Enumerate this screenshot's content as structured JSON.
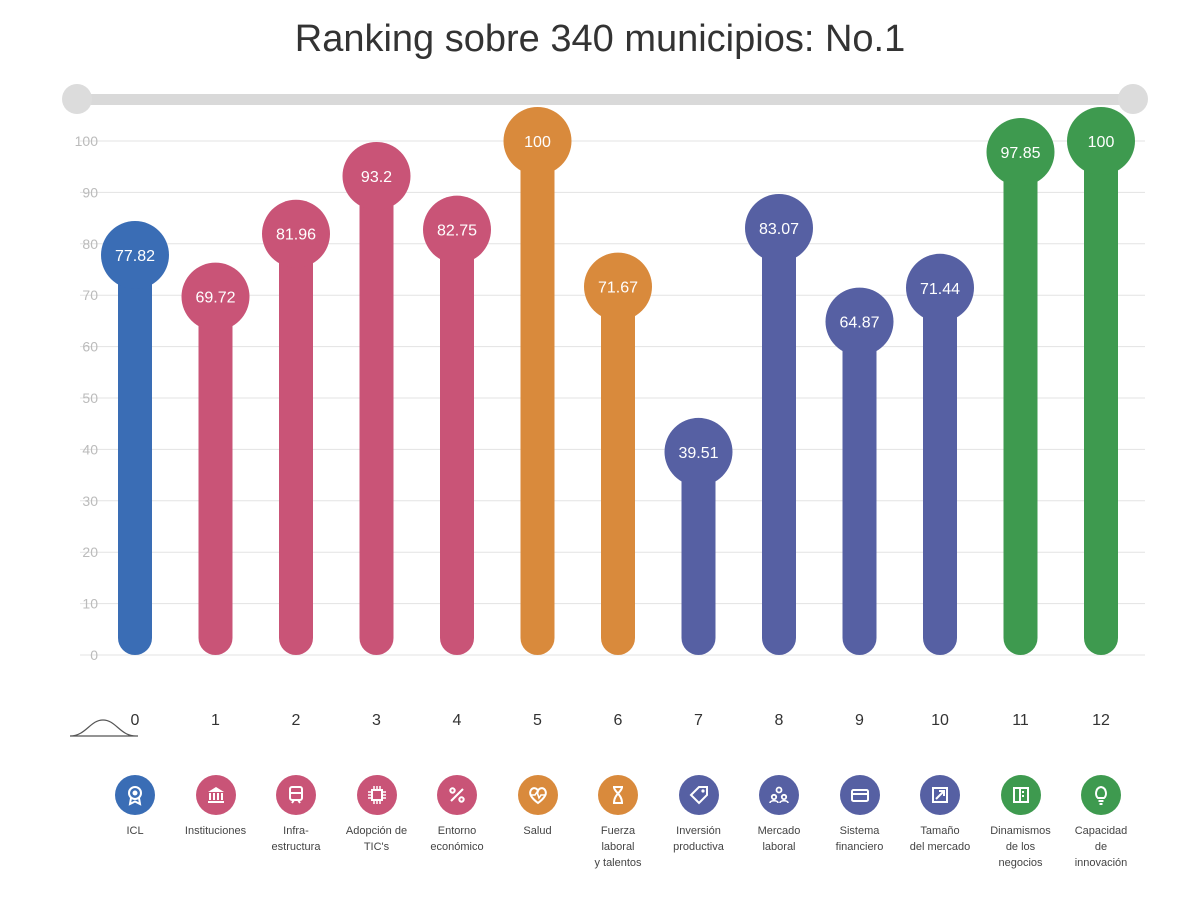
{
  "title": "Ranking sobre 340 municipios: No.1",
  "colors": {
    "blue": "#3a6db5",
    "pink": "#c95477",
    "orange": "#d98a3c",
    "purple": "#5660a3",
    "green": "#3e9a4f",
    "grid": "#e3e3e3",
    "axis_text": "#bbbbbb"
  },
  "chart_data": {
    "type": "bar",
    "title": "Ranking sobre 340 municipios: No.1",
    "xlabel": "",
    "ylabel": "",
    "ylim": [
      0,
      100
    ],
    "yticks": [
      0,
      10,
      20,
      30,
      40,
      50,
      60,
      70,
      80,
      90,
      100
    ],
    "grid": true,
    "categories": [
      "0",
      "1",
      "2",
      "3",
      "4",
      "5",
      "6",
      "7",
      "8",
      "9",
      "10",
      "11",
      "12"
    ],
    "values": [
      77.82,
      69.72,
      81.96,
      93.2,
      82.75,
      100,
      71.67,
      39.51,
      83.07,
      64.87,
      71.44,
      97.85,
      100
    ],
    "value_labels": [
      "77.82",
      "69.72",
      "81.96",
      "93.2",
      "82.75",
      "100",
      "71.67",
      "39.51",
      "83.07",
      "64.87",
      "71.44",
      "97.85",
      "100"
    ],
    "bar_colors": [
      "blue",
      "pink",
      "pink",
      "pink",
      "pink",
      "orange",
      "orange",
      "purple",
      "purple",
      "purple",
      "purple",
      "green",
      "green"
    ]
  },
  "categories": [
    {
      "label": "ICL",
      "icon": "award-icon",
      "color": "blue"
    },
    {
      "label": "Instituciones",
      "icon": "institution-icon",
      "color": "pink"
    },
    {
      "label": "Infra-\nestructura",
      "icon": "train-icon",
      "color": "pink"
    },
    {
      "label": "Adopción de\nTIC's",
      "icon": "chip-icon",
      "color": "pink"
    },
    {
      "label": "Entorno\neconómico",
      "icon": "percent-icon",
      "color": "pink"
    },
    {
      "label": "Salud",
      "icon": "heart-pulse-icon",
      "color": "orange"
    },
    {
      "label": "Fuerza\nlaboral\ny talentos",
      "icon": "hourglass-icon",
      "color": "orange"
    },
    {
      "label": "Inversión\nproductiva",
      "icon": "tag-icon",
      "color": "purple"
    },
    {
      "label": "Mercado\nlaboral",
      "icon": "people-icon",
      "color": "purple"
    },
    {
      "label": "Sistema\nfinanciero",
      "icon": "card-icon",
      "color": "purple"
    },
    {
      "label": "Tamaño\ndel mercado",
      "icon": "expand-icon",
      "color": "purple"
    },
    {
      "label": "Dinamismos\nde los\nnegocios",
      "icon": "building-icon",
      "color": "green"
    },
    {
      "label": "Capacidad\nde\ninnovación",
      "icon": "lightbulb-icon",
      "color": "green"
    }
  ]
}
